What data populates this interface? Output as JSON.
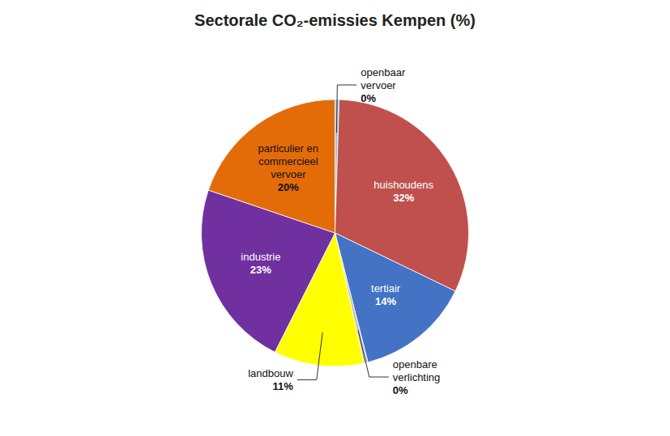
{
  "chart_data": {
    "type": "pie",
    "title": "Sectorale CO₂-emissies Kempen (%)",
    "categories": [
      "openbaar\nvervoer",
      "huishoudens",
      "tertiair",
      "openbare\nverlichting",
      "landbouw",
      "industrie",
      "particulier en\ncommercieel\nvervoer"
    ],
    "values": [
      0.5,
      32,
      14,
      0.5,
      11,
      23,
      20
    ],
    "value_labels": [
      "0%",
      "32%",
      "14%",
      "0%",
      "11%",
      "23%",
      "20%"
    ],
    "colors": [
      "#9DC3E6",
      "#C0504D",
      "#4472C4",
      "#BFBFBF",
      "#FFFF00",
      "#7030A0",
      "#E36C09"
    ],
    "data_labels": true
  }
}
